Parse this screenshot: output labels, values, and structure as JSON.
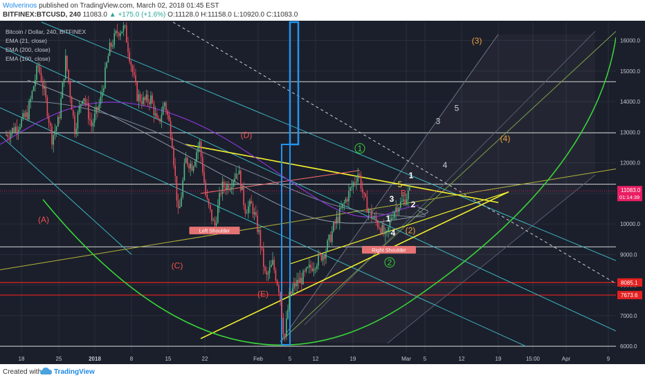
{
  "header": {
    "author": "Wolverinos",
    "published_text": "published on TradingView.com, March 02, 2018 01:45 EST",
    "symbol_line": "BITFINEX:BTCUSD, 240",
    "last": "11083.0",
    "change": "+175.0 (+1.6%)",
    "ohlc": "O:11128.0 H:11158.0 L:10920.0 C:11083.0"
  },
  "legend": {
    "title": "Bitcoin / Dollar, 240, BITFINEX",
    "ema21": "EMA (21, close)",
    "ema200": "EMA (200, close)",
    "ema100": "EMA (100, close)"
  },
  "footer": {
    "created_with": "Created with",
    "brand": "TradingView"
  },
  "colors": {
    "background": "#1b1f2b",
    "grid": "#2a2f3d",
    "candle_up": "#53b987",
    "candle_down": "#eb4d5c",
    "ema21": "#8f9aa8",
    "ema100": "#7a8593",
    "ema200": "#8a35d6",
    "yellow": "#f6f32d",
    "green": "#3ad33a",
    "teal": "#3cb8c4",
    "red_level": "#e42121",
    "blue_bar": "#2196f3",
    "orange_label": "#f0a040",
    "price_tag": "#e91e63"
  },
  "chart_data": {
    "type": "candlestick",
    "title": "Bitcoin / Dollar, 240, BITFINEX",
    "xlabel": "",
    "ylabel": "",
    "x_ticks": [
      "18",
      "25",
      "2018",
      "8",
      "15",
      "22",
      "Feb",
      "5",
      "12",
      "19",
      "Mar",
      "5",
      "12",
      "19",
      "15:00",
      "Apr",
      "9"
    ],
    "x_tick_positions": [
      31,
      85,
      137,
      190,
      243,
      296,
      373,
      419,
      456,
      510,
      587,
      614,
      667,
      720,
      770,
      818,
      879
    ],
    "ylim": [
      5800,
      16600
    ],
    "y_ticks": [
      6000,
      7000,
      8000,
      9000,
      10000,
      11000,
      12000,
      13000,
      14000,
      15000,
      16000
    ],
    "grid": true,
    "last_price": 11083.0,
    "countdown": "01:14:39",
    "horizontal_levels": [
      {
        "value": 14650,
        "color": "white"
      },
      {
        "value": 12980,
        "color": "white"
      },
      {
        "value": 11300,
        "color": "white"
      },
      {
        "value": 9250,
        "color": "white"
      },
      {
        "value": 6000,
        "color": "white"
      },
      {
        "value": 8085.1,
        "color": "red",
        "label": "8085.1"
      },
      {
        "value": 7673.6,
        "color": "red",
        "label": "7673.6"
      }
    ],
    "price_path": [
      [
        8,
        12900
      ],
      [
        25,
        13200
      ],
      [
        40,
        13600
      ],
      [
        55,
        15200
      ],
      [
        65,
        14200
      ],
      [
        75,
        12800
      ],
      [
        85,
        13400
      ],
      [
        95,
        15400
      ],
      [
        108,
        13100
      ],
      [
        120,
        14300
      ],
      [
        132,
        13200
      ],
      [
        145,
        14000
      ],
      [
        158,
        15700
      ],
      [
        170,
        16300
      ],
      [
        180,
        16400
      ],
      [
        188,
        15400
      ],
      [
        198,
        14200
      ],
      [
        208,
        14000
      ],
      [
        218,
        14100
      ],
      [
        228,
        13200
      ],
      [
        238,
        14000
      ],
      [
        248,
        12900
      ],
      [
        258,
        10200
      ],
      [
        268,
        12100
      ],
      [
        278,
        11900
      ],
      [
        288,
        12700
      ],
      [
        298,
        10800
      ],
      [
        310,
        9900
      ],
      [
        320,
        11200
      ],
      [
        332,
        11300
      ],
      [
        344,
        11800
      ],
      [
        354,
        10500
      ],
      [
        364,
        10600
      ],
      [
        374,
        9700
      ],
      [
        384,
        8200
      ],
      [
        394,
        8700
      ],
      [
        404,
        7800
      ],
      [
        411,
        6200
      ],
      [
        418,
        7600
      ],
      [
        426,
        8000
      ],
      [
        436,
        8200
      ],
      [
        446,
        8500
      ],
      [
        458,
        8800
      ],
      [
        470,
        9100
      ],
      [
        484,
        10000
      ],
      [
        498,
        10700
      ],
      [
        508,
        11200
      ],
      [
        518,
        11700
      ],
      [
        526,
        10800
      ],
      [
        534,
        10400
      ],
      [
        542,
        10100
      ],
      [
        550,
        9900
      ],
      [
        558,
        9500
      ],
      [
        566,
        10300
      ],
      [
        574,
        10600
      ],
      [
        582,
        10700
      ],
      [
        590,
        11000
      ],
      [
        594,
        11083
      ]
    ],
    "annotations": [
      {
        "text": "(A)",
        "x": 63,
        "y": 10050,
        "color": "red"
      },
      {
        "text": "(C)",
        "x": 256,
        "y": 8550,
        "color": "red"
      },
      {
        "text": "(D)",
        "x": 356,
        "y": 12820,
        "color": "red"
      },
      {
        "text": "(E)",
        "x": 380,
        "y": 7620,
        "color": "red"
      },
      {
        "text": "(3)",
        "x": 689,
        "y": 15900,
        "color": "orange"
      },
      {
        "text": "(4)",
        "x": 730,
        "y": 12700,
        "color": "orange"
      },
      {
        "text": "1",
        "x": 520,
        "y": 12380,
        "color": "green"
      },
      {
        "text": "2",
        "x": 563,
        "y": 8650,
        "color": "green"
      },
      {
        "text": "3",
        "x": 633,
        "y": 13270,
        "color": "gray"
      },
      {
        "text": "4",
        "x": 643,
        "y": 11830,
        "color": "gray"
      },
      {
        "text": "5",
        "x": 660,
        "y": 13700,
        "color": "gray"
      },
      {
        "text": "5",
        "x": 578,
        "y": 11200,
        "color": "yellow"
      },
      {
        "text": "3",
        "x": 566,
        "y": 10720,
        "color": "white"
      },
      {
        "text": "2",
        "x": 597,
        "y": 10550,
        "color": "white"
      },
      {
        "text": "1",
        "x": 561,
        "y": 10080,
        "color": "white"
      },
      {
        "text": "4",
        "x": 568,
        "y": 9620,
        "color": "white"
      },
      {
        "text": "1",
        "x": 594,
        "y": 11490,
        "color": "white"
      },
      {
        "text": "B",
        "x": 583,
        "y": 10920,
        "color": "red"
      },
      {
        "text": "(2)",
        "x": 593,
        "y": 9700,
        "color": "orange"
      },
      {
        "text": "Left Shoulder",
        "x": 310,
        "y": 9750,
        "color": "box"
      },
      {
        "text": "Right Shoulder",
        "x": 562,
        "y": 9120,
        "color": "box"
      }
    ]
  }
}
